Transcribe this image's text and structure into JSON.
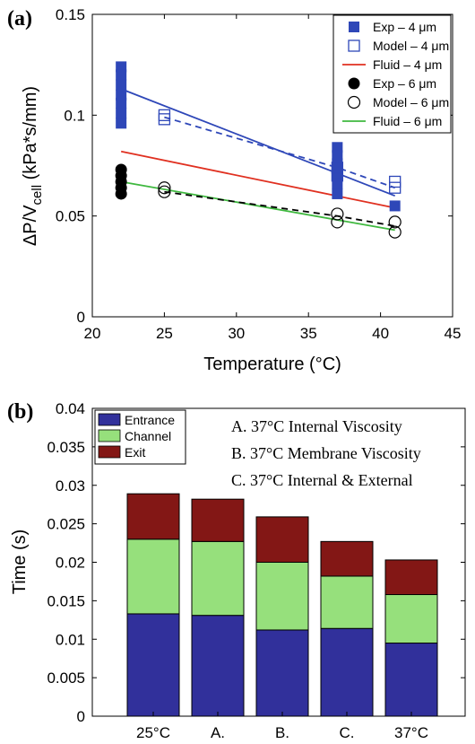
{
  "chart_data": [
    {
      "type": "scatter",
      "panel_label": "(a)",
      "xlabel": "Temperature (°C)",
      "ylabel": "ΔP/V",
      "ylabel_sub": "cell",
      "ylabel_unit": " (kPa*s/mm)",
      "xlim": [
        20,
        45
      ],
      "ylim": [
        0,
        0.15
      ],
      "xticks": [
        20,
        25,
        30,
        35,
        40,
        45
      ],
      "xtick_labels": [
        "20",
        "25",
        "30",
        "35",
        "40",
        "45"
      ],
      "yticks": [
        0,
        0.05,
        0.1,
        0.15
      ],
      "ytick_labels": [
        "0",
        "0.05",
        "0.1",
        "0.15"
      ],
      "grid": false,
      "legend_position": "top-right",
      "series": [
        {
          "name": "Exp – 4 μm",
          "marker": "filled-square",
          "color": "#2e47b8",
          "points": [
            [
              22,
              0.124
            ],
            [
              22,
              0.12
            ],
            [
              22,
              0.115
            ],
            [
              22,
              0.11
            ],
            [
              22,
              0.106
            ],
            [
              22,
              0.101
            ],
            [
              22,
              0.096
            ],
            [
              37,
              0.084
            ],
            [
              37,
              0.08
            ],
            [
              37,
              0.076
            ],
            [
              37,
              0.071
            ],
            [
              37,
              0.066
            ],
            [
              37,
              0.061
            ],
            [
              41,
              0.055
            ]
          ]
        },
        {
          "name": "Model – 4 μm",
          "marker": "open-square",
          "color": "#2e47b8",
          "points": [
            [
              25,
              0.1
            ],
            [
              25,
              0.098
            ],
            [
              37,
              0.074
            ],
            [
              37,
              0.07
            ],
            [
              41,
              0.067
            ],
            [
              41,
              0.064
            ]
          ]
        },
        {
          "name": "Fluid – 4 μm",
          "line": "solid",
          "color": "#e03020",
          "points": [
            [
              22,
              0.082
            ],
            [
              41,
              0.054
            ]
          ]
        },
        {
          "name": "Exp – 6 μm",
          "marker": "filled-circle",
          "color": "#000000",
          "points": [
            [
              22,
              0.073
            ],
            [
              22,
              0.07
            ],
            [
              22,
              0.067
            ],
            [
              22,
              0.064
            ],
            [
              22,
              0.061
            ]
          ]
        },
        {
          "name": "Model – 6 μm",
          "marker": "open-circle",
          "color": "#000000",
          "points": [
            [
              25,
              0.064
            ],
            [
              25,
              0.062
            ],
            [
              37,
              0.051
            ],
            [
              37,
              0.047
            ],
            [
              41,
              0.047
            ],
            [
              41,
              0.042
            ]
          ]
        },
        {
          "name": "Fluid – 6 μm",
          "line": "solid",
          "color": "#3fb83f",
          "points": [
            [
              22,
              0.067
            ],
            [
              41,
              0.043
            ]
          ]
        }
      ],
      "fit_lines": [
        {
          "series": "Exp – 4 μm",
          "style": "solid",
          "color": "#2e47b8",
          "points": [
            [
              22,
              0.113
            ],
            [
              41,
              0.06
            ]
          ]
        },
        {
          "series": "Model – 4 μm",
          "style": "dashed",
          "color": "#2e47b8",
          "points": [
            [
              25,
              0.099
            ],
            [
              37,
              0.074
            ],
            [
              41,
              0.064
            ]
          ]
        },
        {
          "series": "Model – 6 μm",
          "style": "dashed",
          "color": "#000000",
          "points": [
            [
              25,
              0.062
            ],
            [
              37,
              0.05
            ],
            [
              41,
              0.045
            ]
          ]
        }
      ]
    },
    {
      "type": "bar",
      "stacked": true,
      "panel_label": "(b)",
      "ylabel": "Time (s)",
      "ylim": [
        0,
        0.04
      ],
      "yticks": [
        0,
        0.005,
        0.01,
        0.015,
        0.02,
        0.025,
        0.03,
        0.035,
        0.04
      ],
      "ytick_labels": [
        "0",
        "0.005",
        "0.01",
        "0.015",
        "0.02",
        "0.025",
        "0.03",
        "0.035",
        "0.04"
      ],
      "categories": [
        "25°C",
        "A.",
        "B.",
        "C.",
        "37°C"
      ],
      "legend_position": "top-left",
      "series": [
        {
          "name": "Entrance",
          "color": "#31309b",
          "values": [
            0.0133,
            0.0131,
            0.0112,
            0.0114,
            0.0095
          ]
        },
        {
          "name": "Channel",
          "color": "#96e07c",
          "values": [
            0.0097,
            0.0096,
            0.0088,
            0.0068,
            0.0063
          ]
        },
        {
          "name": "Exit",
          "color": "#831715",
          "values": [
            0.0059,
            0.0055,
            0.0059,
            0.0045,
            0.0045
          ]
        }
      ],
      "annotations": [
        "A. 37°C Internal Viscosity",
        "B. 37°C Membrane Viscosity",
        "C. 37°C Internal & External"
      ]
    }
  ]
}
